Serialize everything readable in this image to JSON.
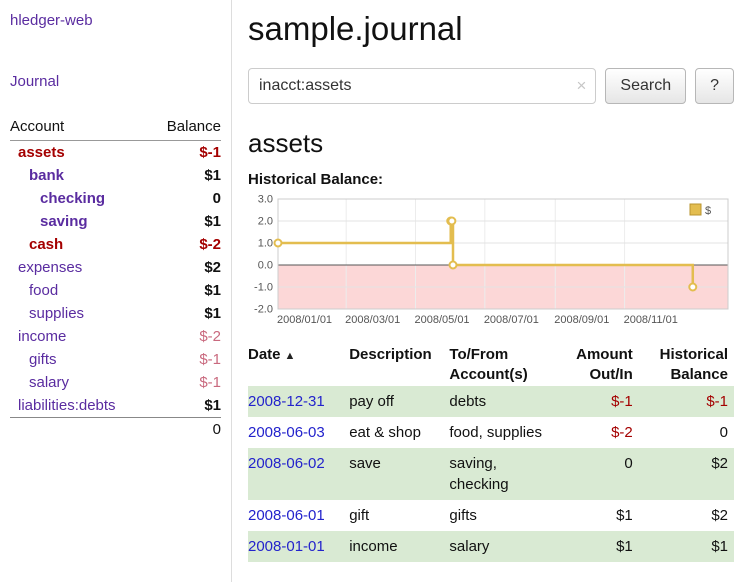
{
  "colors": {
    "purple": "#5a2ca0",
    "negative_strong": "#a40000",
    "negative_soft": "#c9697e",
    "link_blue": "#2323cc",
    "row_green": "#d9ead3",
    "chart_line": "#e3bd4f",
    "chart_negative_fill": "#fcd7d7"
  },
  "app": {
    "title": "hledger-web"
  },
  "sidebar": {
    "journal_label": "Journal",
    "headers": {
      "account": "Account",
      "balance": "Balance"
    },
    "accounts": [
      {
        "name": "assets",
        "indent": 0,
        "emphasis": true,
        "name_negative": true,
        "balance": "$-1",
        "balance_negative": "strong"
      },
      {
        "name": "bank",
        "indent": 1,
        "emphasis": true,
        "name_negative": false,
        "balance": "$1",
        "balance_negative": "none"
      },
      {
        "name": "checking",
        "indent": 2,
        "emphasis": true,
        "name_negative": false,
        "balance": "0",
        "balance_negative": "none"
      },
      {
        "name": "saving",
        "indent": 2,
        "emphasis": true,
        "name_negative": false,
        "balance": "$1",
        "balance_negative": "none"
      },
      {
        "name": "cash",
        "indent": 1,
        "emphasis": true,
        "name_negative": true,
        "balance": "$-2",
        "balance_negative": "strong"
      },
      {
        "name": "expenses",
        "indent": 0,
        "emphasis": false,
        "name_negative": false,
        "balance": "$2",
        "balance_negative": "none"
      },
      {
        "name": "food",
        "indent": 1,
        "emphasis": false,
        "name_negative": false,
        "balance": "$1",
        "balance_negative": "none"
      },
      {
        "name": "supplies",
        "indent": 1,
        "emphasis": false,
        "name_negative": false,
        "balance": "$1",
        "balance_negative": "none"
      },
      {
        "name": "income",
        "indent": 0,
        "emphasis": false,
        "name_negative": false,
        "balance": "$-2",
        "balance_negative": "soft"
      },
      {
        "name": "gifts",
        "indent": 1,
        "emphasis": false,
        "name_negative": false,
        "balance": "$-1",
        "balance_negative": "soft"
      },
      {
        "name": "salary",
        "indent": 1,
        "emphasis": false,
        "name_negative": false,
        "balance": "$-1",
        "balance_negative": "soft"
      },
      {
        "name": "liabilities:debts",
        "indent": 0,
        "emphasis": false,
        "name_negative": false,
        "balance": "$1",
        "balance_negative": "none"
      }
    ],
    "total": "0"
  },
  "main": {
    "title": "sample.journal",
    "search": {
      "value": "inacct:assets",
      "clear_icon": "×",
      "button_label": "Search",
      "help_label": "?"
    },
    "heading": "assets",
    "chart_title": "Historical Balance:"
  },
  "chart_data": {
    "type": "line",
    "step": true,
    "title": "Historical Balance of assets",
    "legend": [
      {
        "label": "$",
        "color": "#e3bd4f"
      }
    ],
    "x_domain": [
      "2008-01-01",
      "2009-01-31"
    ],
    "x_ticks": [
      "2008/01/01",
      "2008/03/01",
      "2008/05/01",
      "2008/07/01",
      "2008/09/01",
      "2008/11/01"
    ],
    "y_ticks": [
      "3.0",
      "2.0",
      "1.0",
      "0.0",
      "-1.0",
      "-2.0"
    ],
    "ylim": [
      -2,
      3
    ],
    "points": [
      {
        "date": "2008-01-01",
        "value": 1
      },
      {
        "date": "2008-06-01",
        "value": 2
      },
      {
        "date": "2008-06-02",
        "value": 2
      },
      {
        "date": "2008-06-03",
        "value": 0
      },
      {
        "date": "2008-12-31",
        "value": -1
      }
    ],
    "negative_region": true,
    "grid": true,
    "legend_position": "top-right"
  },
  "register": {
    "headers": [
      {
        "line1": "Date",
        "line2": "",
        "sort_icon": "▲"
      },
      {
        "line1": "Description",
        "line2": ""
      },
      {
        "line1": "To/From",
        "line2": "Account(s)"
      },
      {
        "line1": "Amount",
        "line2": "Out/In"
      },
      {
        "line1": "Historical",
        "line2": "Balance"
      }
    ],
    "rows": [
      {
        "date": "2008-12-31",
        "description": "pay off",
        "accounts": "debts",
        "amount": "$-1",
        "amount_negative": true,
        "balance": "$-1",
        "balance_negative": true
      },
      {
        "date": "2008-06-03",
        "description": "eat & shop",
        "accounts": "food, supplies",
        "amount": "$-2",
        "amount_negative": true,
        "balance": "0",
        "balance_negative": false
      },
      {
        "date": "2008-06-02",
        "description": "save",
        "accounts": "saving, checking",
        "amount": "0",
        "amount_negative": false,
        "balance": "$2",
        "balance_negative": false
      },
      {
        "date": "2008-06-01",
        "description": "gift",
        "accounts": "gifts",
        "amount": "$1",
        "amount_negative": false,
        "balance": "$2",
        "balance_negative": false
      },
      {
        "date": "2008-01-01",
        "description": "income",
        "accounts": "salary",
        "amount": "$1",
        "amount_negative": false,
        "balance": "$1",
        "balance_negative": false
      }
    ]
  }
}
